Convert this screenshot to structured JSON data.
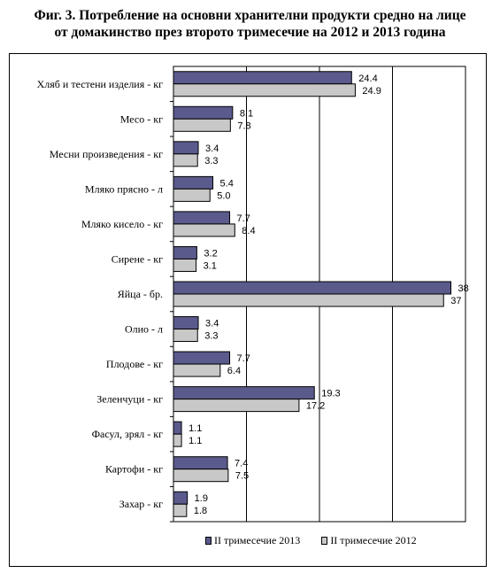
{
  "title_lines": [
    "Фиг. 3. Потребление на основни хранителни продукти средно на лице",
    "от домакинство през второто тримесечие на 2012 и 2013 година"
  ],
  "colors": {
    "series_2013": "#5a5a8c",
    "series_2012": "#c8c8c8",
    "grid": "#000000"
  },
  "chart_data": {
    "type": "bar",
    "orientation": "horizontal",
    "title": "Фиг. 3. Потребление на основни хранителни продукти средно на лице от домакинство през второто тримесечие на 2012 и 2013 година",
    "categories": [
      "Хляб и тестени изделия - кг",
      "Месо - кг",
      "Месни произведения  - кг",
      "Мляко прясно - л",
      "Мляко кисело - кг",
      "Сирене - кг",
      "Яйца - бр.",
      "Олио - л",
      "Плодове - кг",
      "Зеленчуци - кг",
      "Фасул, зрял - кг",
      "Картофи - кг",
      "Захар - кг"
    ],
    "series": [
      {
        "name": "II тримесечие 2013",
        "values": [
          24.4,
          8.1,
          3.4,
          5.4,
          7.7,
          3.2,
          38,
          3.4,
          7.7,
          19.3,
          1.1,
          7.4,
          1.9
        ],
        "labels": [
          "24.4",
          "8.1",
          "3.4",
          "5.4",
          "7.7",
          "3.2",
          "38",
          "3.4",
          "7.7",
          "19.3",
          "1.1",
          "7.4",
          "1.9"
        ]
      },
      {
        "name": "II тримесечие 2012",
        "values": [
          24.9,
          7.8,
          3.3,
          5.0,
          8.4,
          3.1,
          37,
          3.3,
          6.4,
          17.2,
          1.1,
          7.5,
          1.8
        ],
        "labels": [
          "24.9",
          "7.8",
          "3.3",
          "5.0",
          "8.4",
          "3.1",
          "37",
          "3.3",
          "6.4",
          "17.2",
          "1.1",
          "7.5",
          "1.8"
        ]
      }
    ],
    "xlim": [
      0,
      40
    ],
    "grid": true,
    "legend_position": "bottom"
  }
}
